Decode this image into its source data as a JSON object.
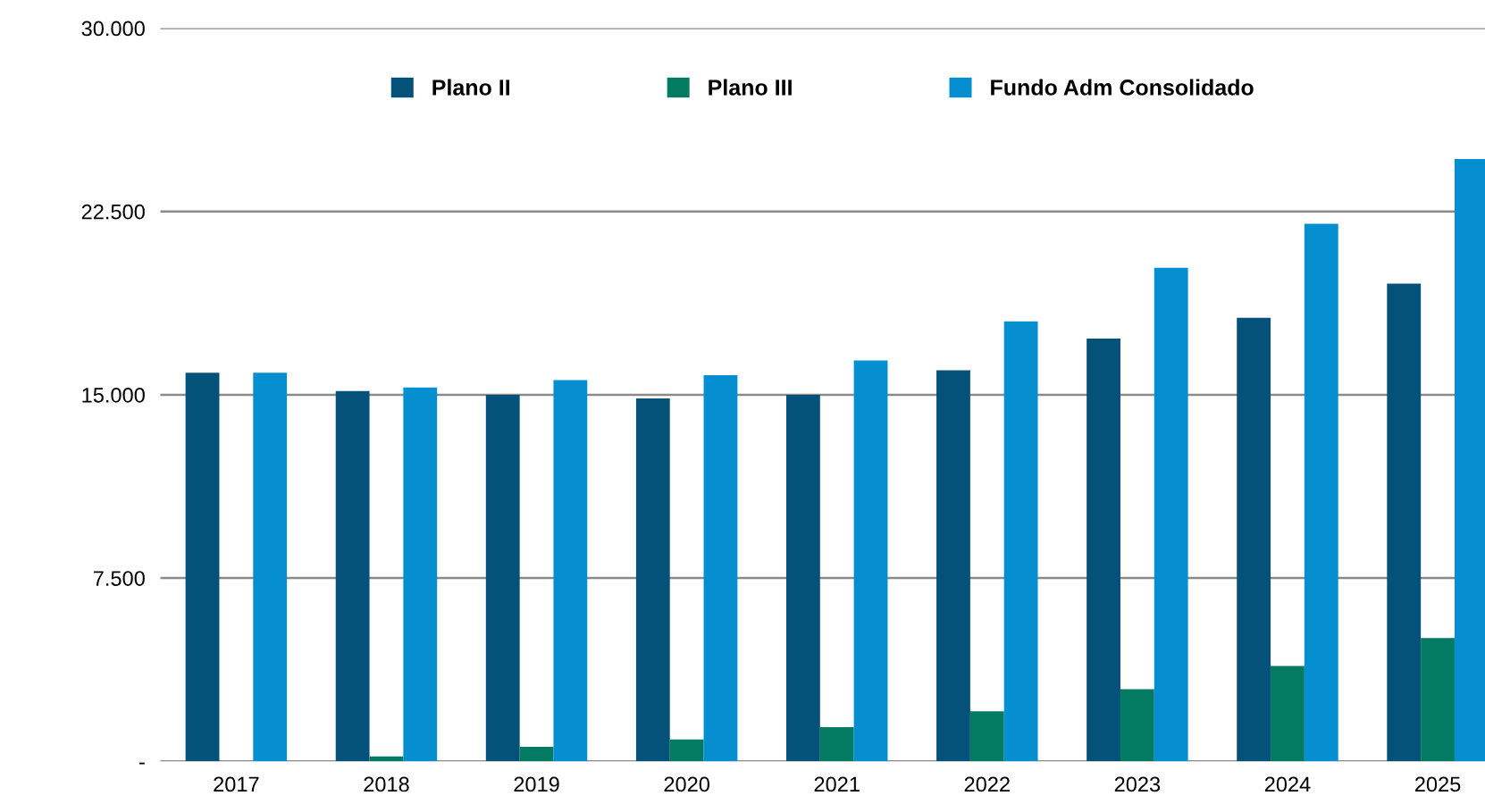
{
  "chart_data": {
    "type": "bar",
    "categories": [
      "2017",
      "2018",
      "2019",
      "2020",
      "2021",
      "2022",
      "2023",
      "2024",
      "2025"
    ],
    "series": [
      {
        "name": "Plano II",
        "color": "#04527a",
        "values": [
          15900,
          15150,
          15000,
          14850,
          15000,
          16000,
          17300,
          18150,
          19550
        ]
      },
      {
        "name": "Plano III",
        "color": "#037a62",
        "values": [
          0,
          200,
          600,
          900,
          1400,
          2050,
          2950,
          3900,
          5050
        ]
      },
      {
        "name": "Fundo Adm Consolidado",
        "color": "#058fd1",
        "values": [
          15900,
          15300,
          15600,
          15800,
          16400,
          18000,
          20200,
          22000,
          24650
        ]
      }
    ],
    "ylim": [
      0,
      30000
    ],
    "yticks": [
      {
        "value": 0,
        "label": "-"
      },
      {
        "value": 7500,
        "label": "7.500"
      },
      {
        "value": 15000,
        "label": "15.000"
      },
      {
        "value": 22500,
        "label": "22.500"
      },
      {
        "value": 30000,
        "label": "30.000"
      }
    ],
    "grid": "y",
    "legend": "top"
  }
}
